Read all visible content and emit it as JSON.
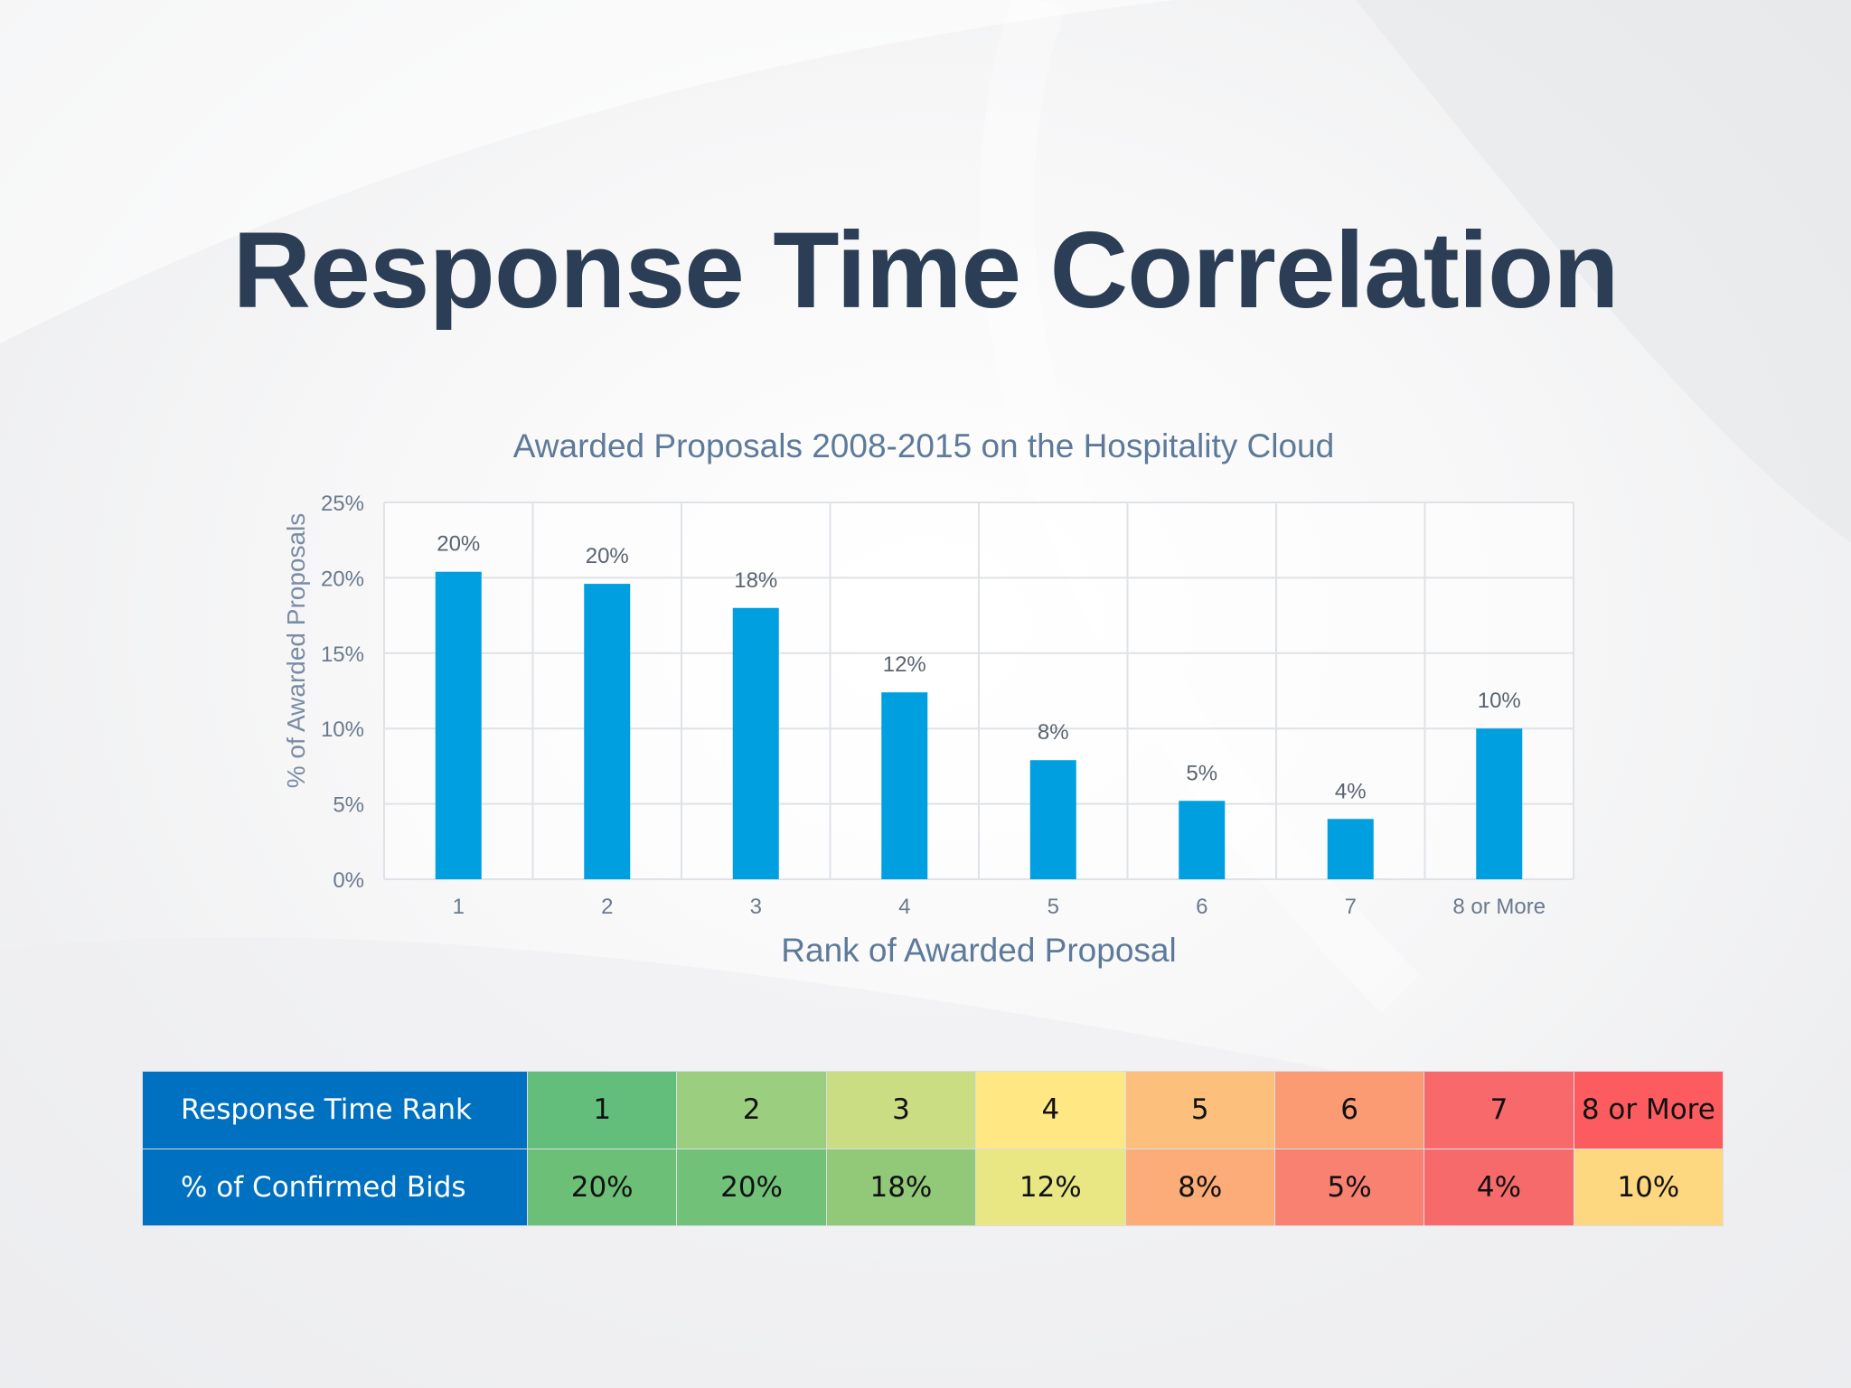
{
  "slide": {
    "title": "Response Time Correlation"
  },
  "chart_data": {
    "type": "bar",
    "title": "Awarded Proposals 2008-2015 on the Hospitality Cloud",
    "xlabel": "Rank of Awarded Proposal",
    "ylabel": "% of Awarded Proposals",
    "categories": [
      "1",
      "2",
      "3",
      "4",
      "5",
      "6",
      "7",
      "8 or More"
    ],
    "values": [
      20.4,
      19.6,
      18.0,
      12.4,
      7.9,
      5.2,
      4.0,
      10.0
    ],
    "data_labels": [
      "20%",
      "20%",
      "18%",
      "12%",
      "8%",
      "5%",
      "4%",
      "10%"
    ],
    "ylim": [
      0,
      25
    ],
    "yticks": [
      0,
      5,
      10,
      15,
      20,
      25
    ],
    "ytick_labels": [
      "0%",
      "5%",
      "10%",
      "15%",
      "20%",
      "25%"
    ],
    "grid": true,
    "bar_color": "#009fdf"
  },
  "table": {
    "rows": [
      {
        "header": "Response Time Rank",
        "cells": [
          "1",
          "2",
          "3",
          "4",
          "5",
          "6",
          "7",
          "8 or More"
        ],
        "colors": [
          "#63be7b",
          "#9bcf7f",
          "#cbdd82",
          "#ffe884",
          "#fdc07c",
          "#fa9b74",
          "#f8696b",
          "#fc5c5f"
        ]
      },
      {
        "header": "% of Confirmed Bids",
        "cells": [
          "20%",
          "20%",
          "18%",
          "12%",
          "8%",
          "5%",
          "4%",
          "10%"
        ],
        "colors": [
          "#6cbf76",
          "#72c178",
          "#91c979",
          "#e8e784",
          "#fbac78",
          "#f98171",
          "#f76a6b",
          "#fed880"
        ]
      }
    ]
  }
}
